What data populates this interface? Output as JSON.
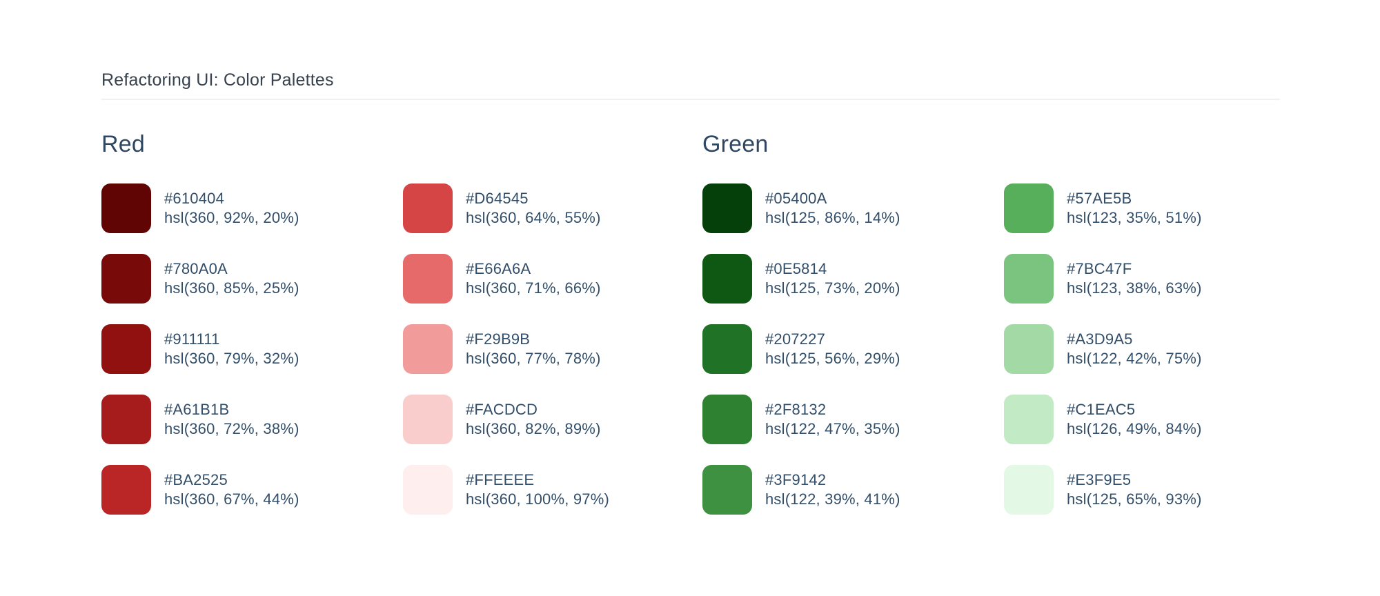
{
  "title": "Refactoring UI: Color Palettes",
  "palettes": [
    {
      "name": "Red",
      "columns": [
        [
          {
            "hex": "#610404",
            "hsl": "hsl(360, 92%, 20%)"
          },
          {
            "hex": "#780A0A",
            "hsl": "hsl(360, 85%, 25%)"
          },
          {
            "hex": "#911111",
            "hsl": "hsl(360, 79%, 32%)"
          },
          {
            "hex": "#A61B1B",
            "hsl": "hsl(360, 72%, 38%)"
          },
          {
            "hex": "#BA2525",
            "hsl": "hsl(360, 67%, 44%)"
          }
        ],
        [
          {
            "hex": "#D64545",
            "hsl": "hsl(360, 64%, 55%)"
          },
          {
            "hex": "#E66A6A",
            "hsl": "hsl(360, 71%, 66%)"
          },
          {
            "hex": "#F29B9B",
            "hsl": "hsl(360, 77%, 78%)"
          },
          {
            "hex": "#FACDCD",
            "hsl": "hsl(360, 82%, 89%)"
          },
          {
            "hex": "#FFEEEE",
            "hsl": "hsl(360, 100%, 97%)"
          }
        ]
      ]
    },
    {
      "name": "Green",
      "columns": [
        [
          {
            "hex": "#05400A",
            "hsl": "hsl(125, 86%, 14%)"
          },
          {
            "hex": "#0E5814",
            "hsl": "hsl(125, 73%, 20%)"
          },
          {
            "hex": "#207227",
            "hsl": "hsl(125, 56%, 29%)"
          },
          {
            "hex": "#2F8132",
            "hsl": "hsl(122, 47%, 35%)"
          },
          {
            "hex": "#3F9142",
            "hsl": "hsl(122, 39%, 41%)"
          }
        ],
        [
          {
            "hex": "#57AE5B",
            "hsl": "hsl(123, 35%, 51%)"
          },
          {
            "hex": "#7BC47F",
            "hsl": "hsl(123, 38%, 63%)"
          },
          {
            "hex": "#A3D9A5",
            "hsl": "hsl(122, 42%, 75%)"
          },
          {
            "hex": "#C1EAC5",
            "hsl": "hsl(126, 49%, 84%)"
          },
          {
            "hex": "#E3F9E5",
            "hsl": "hsl(125, 65%, 93%)"
          }
        ]
      ]
    }
  ]
}
